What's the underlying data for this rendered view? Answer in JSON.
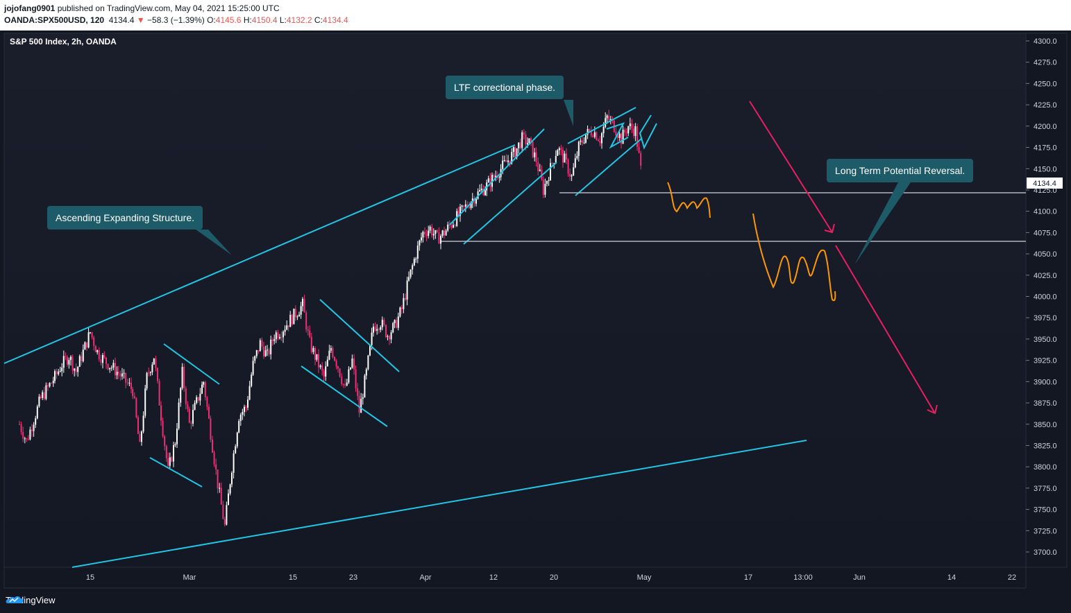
{
  "header": {
    "author": "jojofang0901",
    "published_text": "published on TradingView.com, May 04, 2021 15:25:00 UTC",
    "symbol": "OANDA:SPX500USD, 120",
    "last": "4134.4",
    "change_arrow": "▼",
    "change": "−58.3 (−1.39%)",
    "o_label": "O:",
    "o_value": "4145.6",
    "h_label": "H:",
    "h_value": "4150.4",
    "l_label": "L:",
    "l_value": "4132.2",
    "c_label": "C:",
    "c_value": "4134.4"
  },
  "chart_title": "S&P 500 Index, 2h, OANDA",
  "annotations": {
    "ascending": "Ascending Expanding Structure.",
    "ltf": "LTF correctional phase.",
    "reversal": "Long Term Potential Reversal."
  },
  "footer": {
    "brand": "TradingView"
  },
  "colors": {
    "background": "#131722",
    "up_candle": "#ffffff",
    "down_candle": "#ef2f74",
    "trendline": "#22c6e4",
    "arrow": "#e91e63",
    "projection": "#ff9800",
    "callout": "#1e5b68"
  },
  "chart_data": {
    "type": "candlestick",
    "timeframe": "2h",
    "title": "S&P 500 Index, 2h, OANDA",
    "ylim": [
      3680,
      4310
    ],
    "y_ticks": [
      "4300.0",
      "4275.0",
      "4250.0",
      "4225.0",
      "4200.0",
      "4175.0",
      "4150.0",
      "4125.0",
      "4100.0",
      "4075.0",
      "4050.0",
      "4025.0",
      "4000.0",
      "3975.0",
      "3950.0",
      "3925.0",
      "3900.0",
      "3875.0",
      "3850.0",
      "3825.0",
      "3800.0",
      "3775.0",
      "3750.0",
      "3725.0",
      "3700.0"
    ],
    "x_ticks": [
      "15",
      "Mar",
      "15",
      "23",
      "Apr",
      "12",
      "20",
      "May",
      "17",
      "13:00",
      "Jun",
      "14",
      "22"
    ],
    "last_price_label": "4134.4",
    "price_path": [
      [
        "2021-02-05",
        3850
      ],
      [
        "2021-02-06",
        3830
      ],
      [
        "2021-02-08",
        3880
      ],
      [
        "2021-02-10",
        3905
      ],
      [
        "2021-02-11",
        3920
      ],
      [
        "2021-02-12",
        3930
      ],
      [
        "2021-02-13",
        3912
      ],
      [
        "2021-02-14",
        3935
      ],
      [
        "2021-02-15",
        3958
      ],
      [
        "2021-02-16",
        3935
      ],
      [
        "2021-02-17",
        3925
      ],
      [
        "2021-02-19",
        3910
      ],
      [
        "2021-02-21",
        3890
      ],
      [
        "2021-02-22",
        3822
      ],
      [
        "2021-02-23",
        3905
      ],
      [
        "2021-02-24",
        3930
      ],
      [
        "2021-02-25",
        3860
      ],
      [
        "2021-02-26",
        3795
      ],
      [
        "2021-02-27",
        3830
      ],
      [
        "2021-02-28",
        3910
      ],
      [
        "2021-03-01",
        3850
      ],
      [
        "2021-03-03",
        3900
      ],
      [
        "2021-03-04",
        3840
      ],
      [
        "2021-03-05",
        3780
      ],
      [
        "2021-03-06",
        3730
      ],
      [
        "2021-03-07",
        3800
      ],
      [
        "2021-03-08",
        3860
      ],
      [
        "2021-03-09",
        3870
      ],
      [
        "2021-03-10",
        3920
      ],
      [
        "2021-03-11",
        3945
      ],
      [
        "2021-03-12",
        3930
      ],
      [
        "2021-03-13",
        3955
      ],
      [
        "2021-03-14",
        3960
      ],
      [
        "2021-03-15",
        3970
      ],
      [
        "2021-03-16",
        3980
      ],
      [
        "2021-03-17",
        3990
      ],
      [
        "2021-03-18",
        3945
      ],
      [
        "2021-03-19",
        3925
      ],
      [
        "2021-03-20",
        3905
      ],
      [
        "2021-03-21",
        3940
      ],
      [
        "2021-03-22",
        3918
      ],
      [
        "2021-03-23",
        3890
      ],
      [
        "2021-03-24",
        3925
      ],
      [
        "2021-03-25",
        3865
      ],
      [
        "2021-03-26",
        3910
      ],
      [
        "2021-03-27",
        3965
      ],
      [
        "2021-03-28",
        3970
      ],
      [
        "2021-03-29",
        3955
      ],
      [
        "2021-03-30",
        3965
      ],
      [
        "2021-03-31",
        3985
      ],
      [
        "2021-04-01",
        4020
      ],
      [
        "2021-04-02",
        4050
      ],
      [
        "2021-04-03",
        4075
      ],
      [
        "2021-04-04",
        4080
      ],
      [
        "2021-04-05",
        4068
      ],
      [
        "2021-04-06",
        4075
      ],
      [
        "2021-04-08",
        4095
      ],
      [
        "2021-04-10",
        4115
      ],
      [
        "2021-04-12",
        4130
      ],
      [
        "2021-04-14",
        4150
      ],
      [
        "2021-04-16",
        4170
      ],
      [
        "2021-04-17",
        4185
      ],
      [
        "2021-04-18",
        4180
      ],
      [
        "2021-04-19",
        4160
      ],
      [
        "2021-04-20",
        4125
      ],
      [
        "2021-04-21",
        4150
      ],
      [
        "2021-04-22",
        4175
      ],
      [
        "2021-04-23",
        4160
      ],
      [
        "2021-04-24",
        4140
      ],
      [
        "2021-04-25",
        4175
      ],
      [
        "2021-04-26",
        4190
      ],
      [
        "2021-04-27",
        4195
      ],
      [
        "2021-04-28",
        4185
      ],
      [
        "2021-04-29",
        4210
      ],
      [
        "2021-04-30",
        4200
      ],
      [
        "2021-05-01",
        4185
      ],
      [
        "2021-05-02",
        4200
      ],
      [
        "2021-05-03",
        4195
      ],
      [
        "2021-05-04",
        4134.4
      ]
    ],
    "horizontal_levels": [
      4122,
      4065
    ]
  }
}
